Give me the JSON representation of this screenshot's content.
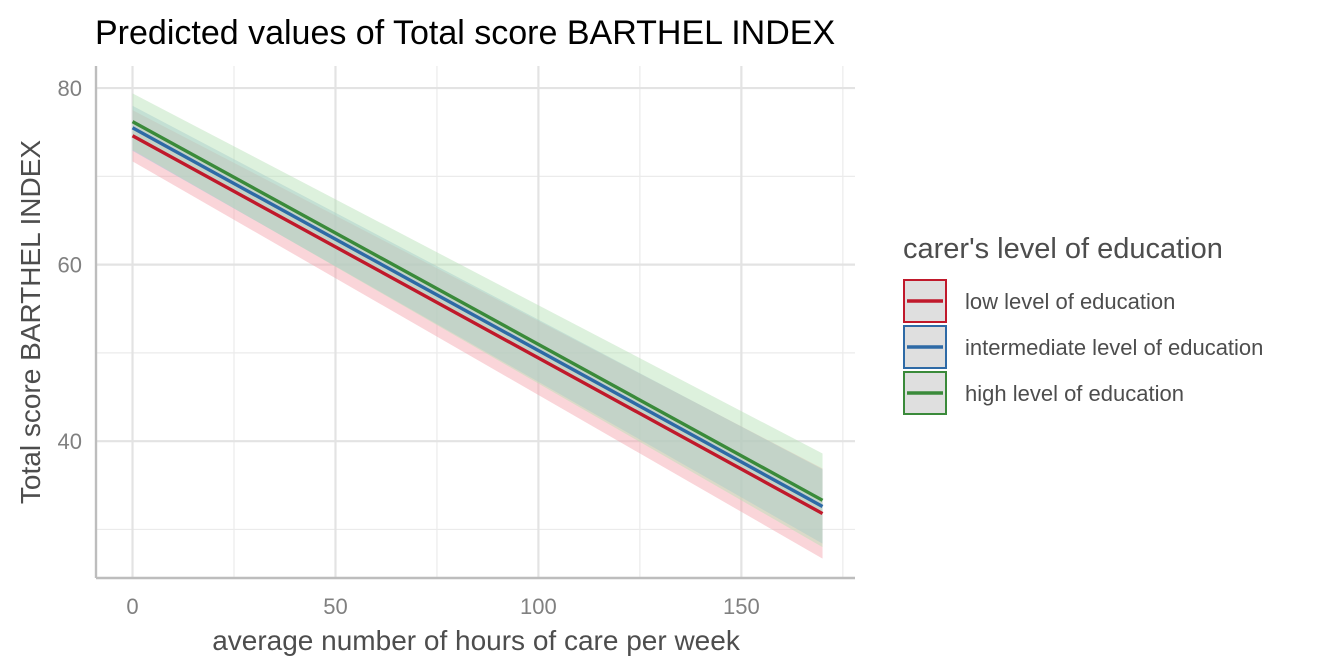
{
  "chart_data": {
    "type": "line",
    "title": "Predicted values of Total score BARTHEL INDEX",
    "xlabel": "average number of hours of care per week",
    "ylabel": "Total score BARTHEL INDEX",
    "xlim": [
      -9,
      178
    ],
    "ylim": [
      24.5,
      82.5
    ],
    "x_ticks": [
      0,
      50,
      100,
      150
    ],
    "x_tick_labels": [
      "0",
      "50",
      "100",
      "150"
    ],
    "y_ticks": [
      40,
      60,
      80
    ],
    "y_tick_labels": [
      "40",
      "60",
      "80"
    ],
    "x_minor_ticks": [
      25,
      75,
      125,
      175
    ],
    "y_minor_ticks": [
      30,
      50,
      70
    ],
    "grid": true,
    "legend": {
      "title": "carer's level of education",
      "position": "right"
    },
    "series": [
      {
        "name": "low level of education",
        "color": "#c0192b",
        "ribbon_color": "#f4a1ab",
        "x": [
          0,
          170
        ],
        "y": [
          74.6,
          31.8
        ],
        "ci_lower": [
          71.7,
          26.7
        ],
        "ci_upper": [
          77.5,
          36.9
        ]
      },
      {
        "name": "intermediate level of education",
        "color": "#2e6aa6",
        "ribbon_color": "#9bbbd9",
        "x": [
          0,
          170
        ],
        "y": [
          75.5,
          32.6
        ],
        "ci_lower": [
          72.9,
          28.4
        ],
        "ci_upper": [
          78.0,
          36.8
        ]
      },
      {
        "name": "high level of education",
        "color": "#3a8a3a",
        "ribbon_color": "#b4dfb4",
        "x": [
          0,
          170
        ],
        "y": [
          76.2,
          33.3
        ],
        "ci_lower": [
          73.0,
          28.0
        ],
        "ci_upper": [
          79.4,
          38.6
        ]
      }
    ]
  }
}
